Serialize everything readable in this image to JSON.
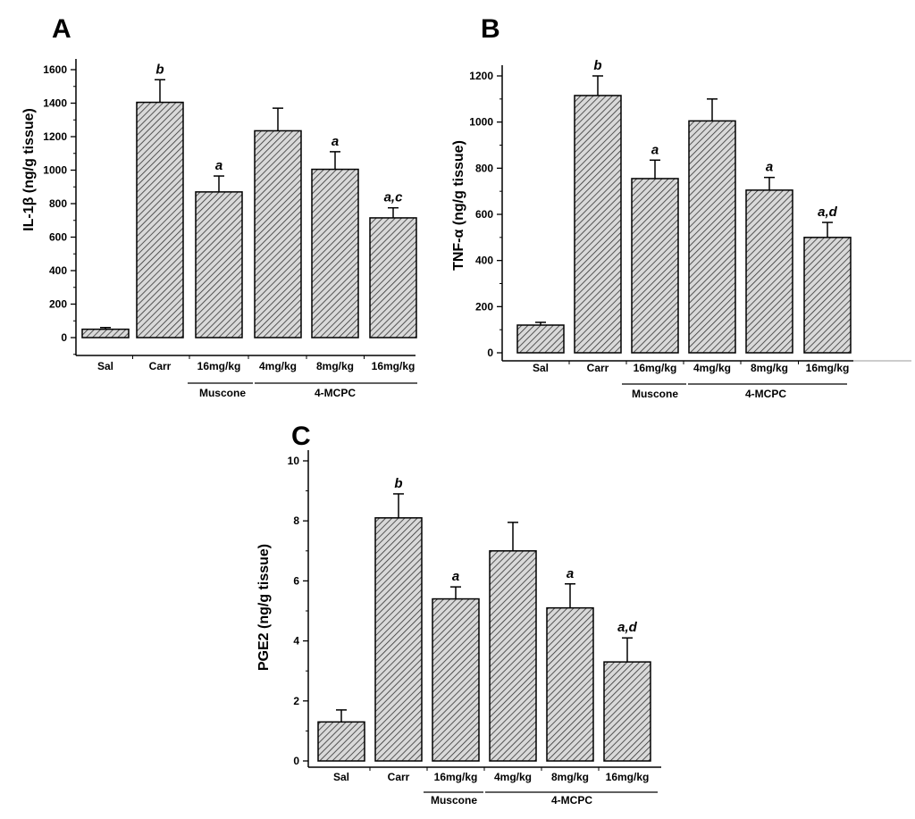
{
  "colors": {
    "bar_fill": "#d9d9d9",
    "hatch": "#333333",
    "axis": "#000000"
  },
  "chart_data": [
    {
      "type": "bar",
      "panel": "A",
      "ylabel": "IL-1β (ng/g tissue)",
      "ylim": [
        -100,
        1700
      ],
      "yticks": [
        0,
        200,
        400,
        600,
        800,
        1000,
        1200,
        1400,
        1600
      ],
      "categories": [
        "Sal",
        "Carr",
        "16mg/kg",
        "4mg/kg",
        "8mg/kg",
        "16mg/kg"
      ],
      "groups": [
        {
          "label": "Muscone",
          "from": 2,
          "to": 2
        },
        {
          "label": "4-MCPC",
          "from": 3,
          "to": 5
        }
      ],
      "values": [
        50,
        1405,
        870,
        1235,
        1005,
        715
      ],
      "errors": [
        10,
        135,
        95,
        135,
        105,
        60
      ],
      "significance": [
        "",
        "b",
        "a",
        "",
        "a",
        "a,c"
      ]
    },
    {
      "type": "bar",
      "panel": "B",
      "ylabel": "TNF-α (ng/g tissue)",
      "ylim": [
        0,
        1300
      ],
      "yticks": [
        0,
        200,
        400,
        600,
        800,
        1000,
        1200
      ],
      "categories": [
        "Sal",
        "Carr",
        "16mg/kg",
        "4mg/kg",
        "8mg/kg",
        "16mg/kg"
      ],
      "groups": [
        {
          "label": "Muscone",
          "from": 2,
          "to": 2
        },
        {
          "label": "4-MCPC",
          "from": 3,
          "to": 5
        }
      ],
      "values": [
        120,
        1115,
        755,
        1005,
        705,
        500
      ],
      "errors": [
        12,
        85,
        80,
        95,
        55,
        65
      ],
      "significance": [
        "",
        "b",
        "a",
        "",
        "a",
        "a,d"
      ]
    },
    {
      "type": "bar",
      "panel": "C",
      "ylabel": "PGE2 (ng/g tissue)",
      "ylim": [
        0,
        10
      ],
      "yticks": [
        0,
        2,
        4,
        6,
        8,
        10
      ],
      "categories": [
        "Sal",
        "Carr",
        "16mg/kg",
        "4mg/kg",
        "8mg/kg",
        "16mg/kg"
      ],
      "groups": [
        {
          "label": "Muscone",
          "from": 2,
          "to": 2
        },
        {
          "label": "4-MCPC",
          "from": 3,
          "to": 5
        }
      ],
      "values": [
        1.3,
        8.1,
        5.4,
        7.0,
        5.1,
        3.3
      ],
      "errors": [
        0.4,
        0.8,
        0.4,
        0.95,
        0.8,
        0.8
      ],
      "significance": [
        "",
        "b",
        "a",
        "",
        "a",
        "a,d"
      ]
    }
  ]
}
